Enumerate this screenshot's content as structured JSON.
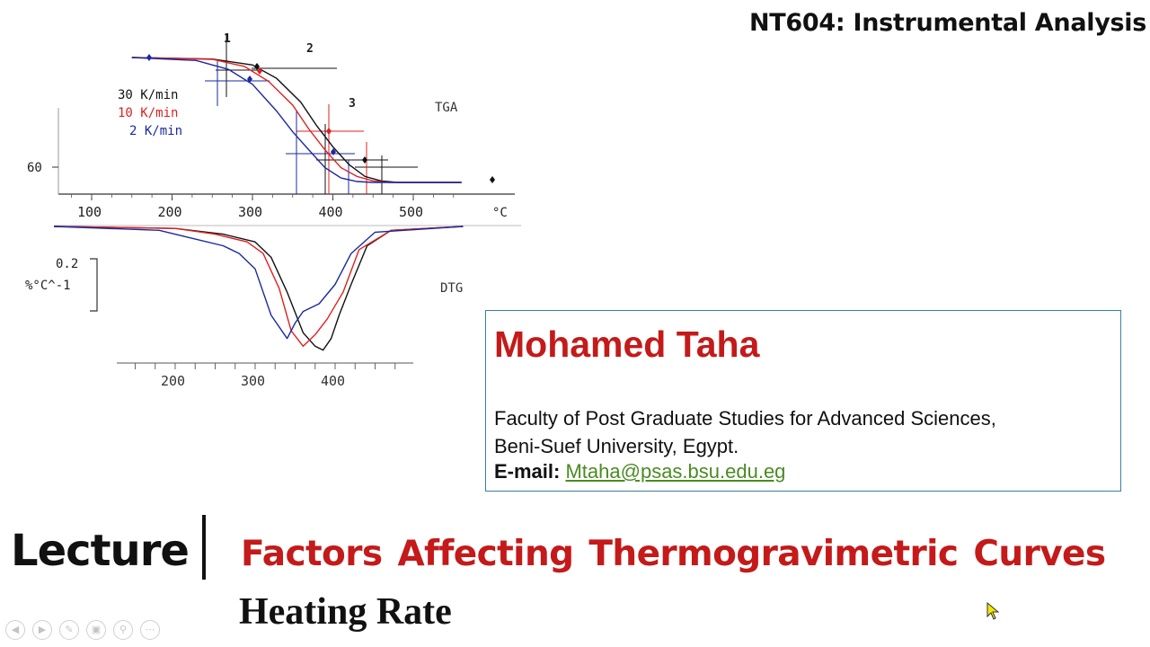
{
  "header": {
    "course": "NT604: Instrumental Analysis"
  },
  "chart_data": [
    {
      "type": "line",
      "ylabel": "",
      "label": "TGA",
      "xlabel_unit": "°C",
      "y_tick": "60",
      "x_ticks": [
        "100",
        "200",
        "300",
        "400",
        "500"
      ],
      "step_labels": [
        "1",
        "2",
        "3"
      ],
      "xlim": [
        100,
        560
      ],
      "ylim": [
        55,
        102
      ],
      "series": [
        {
          "name": "30 K/min",
          "color": "#111111",
          "x": [
            150,
            250,
            300,
            330,
            360,
            380,
            400,
            420,
            440,
            460,
            480,
            560
          ],
          "y": [
            100,
            99.5,
            97.5,
            93,
            85,
            77,
            70,
            64,
            60,
            58.5,
            58,
            58
          ]
        },
        {
          "name": "10 K/min",
          "color": "#e02020",
          "x": [
            150,
            250,
            290,
            320,
            350,
            370,
            390,
            410,
            430,
            450,
            470,
            560
          ],
          "y": [
            100,
            99.4,
            97,
            92,
            84,
            76,
            69,
            63,
            60,
            58.5,
            58,
            58
          ]
        },
        {
          "name": "2 K/min",
          "color": "#1a2aa0",
          "x": [
            150,
            230,
            270,
            300,
            330,
            350,
            370,
            390,
            410,
            430,
            450,
            560
          ],
          "y": [
            100,
            99,
            96,
            91,
            82,
            75,
            69,
            63,
            59.5,
            58.3,
            58,
            58
          ]
        }
      ]
    },
    {
      "type": "line",
      "label": "DTG",
      "scale_value": "0.2",
      "scale_unit": "%°C^-1",
      "x_ticks": [
        "200",
        "300",
        "400"
      ],
      "series": [
        {
          "name": "30 K/min",
          "color": "#111111",
          "x": [
            40,
            200,
            260,
            300,
            320,
            340,
            360,
            375,
            385,
            395,
            405,
            420,
            440,
            470,
            560
          ],
          "y": [
            0,
            -0.01,
            -0.04,
            -0.08,
            -0.16,
            -0.34,
            -0.55,
            -0.62,
            -0.64,
            -0.58,
            -0.46,
            -0.3,
            -0.1,
            -0.02,
            0
          ]
        },
        {
          "name": "10 K/min",
          "color": "#e02020",
          "x": [
            40,
            200,
            250,
            290,
            310,
            330,
            345,
            360,
            375,
            390,
            410,
            430,
            470,
            560
          ],
          "y": [
            0,
            -0.01,
            -0.04,
            -0.08,
            -0.14,
            -0.32,
            -0.54,
            -0.62,
            -0.56,
            -0.48,
            -0.34,
            -0.12,
            -0.02,
            0
          ]
        },
        {
          "name": "2 K/min",
          "color": "#1a2aa0",
          "x": [
            40,
            180,
            220,
            260,
            280,
            300,
            320,
            340,
            350,
            360,
            380,
            400,
            420,
            450,
            560
          ],
          "y": [
            0,
            -0.02,
            -0.06,
            -0.1,
            -0.14,
            -0.22,
            -0.46,
            -0.58,
            -0.5,
            -0.44,
            -0.4,
            -0.3,
            -0.14,
            -0.03,
            0
          ]
        }
      ]
    }
  ],
  "author": {
    "name": "Mohamed Taha",
    "affiliation_1": "Faculty of Post Graduate Studies for Advanced Sciences,",
    "affiliation_2": "Beni-Suef University, Egypt.",
    "email_label": "E-mail:",
    "email": "Mtaha@psas.bsu.edu.eg"
  },
  "lecture": {
    "label": "Lecture",
    "title": "Factors Affecting Thermogravimetric Curves",
    "subtitle": "Heating Rate"
  },
  "toolbar": {
    "icons": [
      "prev-icon",
      "next-icon",
      "pen-icon",
      "slides-icon",
      "zoom-icon",
      "more-icon"
    ]
  },
  "colors": {
    "accent_red": "#c41a1a",
    "link_green": "#4a8b22",
    "box_border": "#3b7da0"
  }
}
